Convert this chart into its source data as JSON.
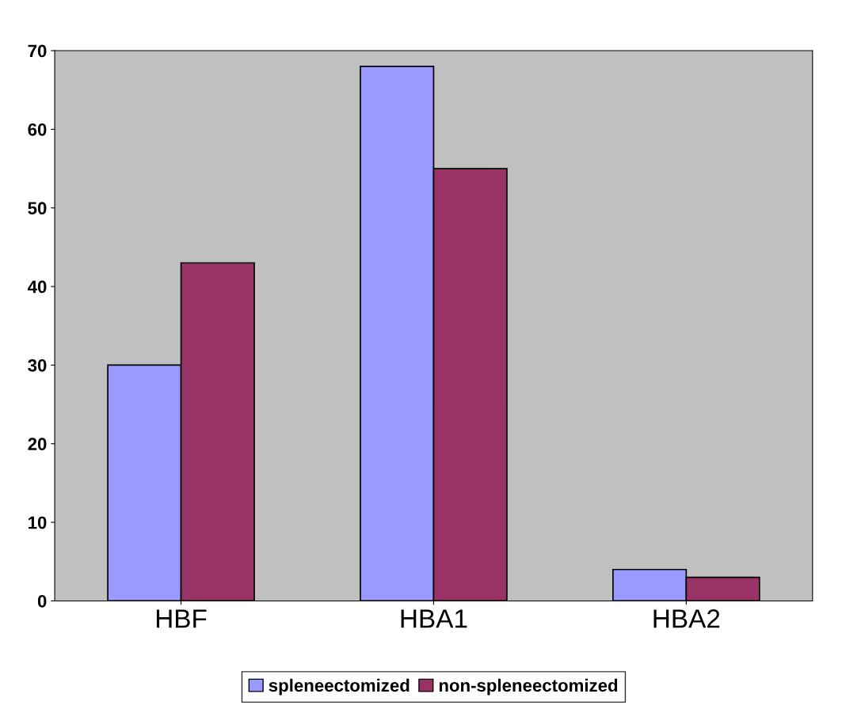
{
  "chart_data": {
    "type": "bar",
    "categories": [
      "HBF",
      "HBA1",
      "HBA2"
    ],
    "series": [
      {
        "name": "spleneectomized",
        "color": "#9999ff",
        "values": [
          30,
          68,
          4
        ]
      },
      {
        "name": "non-spleneectomized",
        "color": "#993366",
        "values": [
          43,
          55,
          3
        ]
      }
    ],
    "ylim": [
      0,
      70
    ],
    "yticks": [
      0,
      10,
      20,
      30,
      40,
      50,
      60,
      70
    ],
    "grid": false,
    "legend": "bottom"
  }
}
